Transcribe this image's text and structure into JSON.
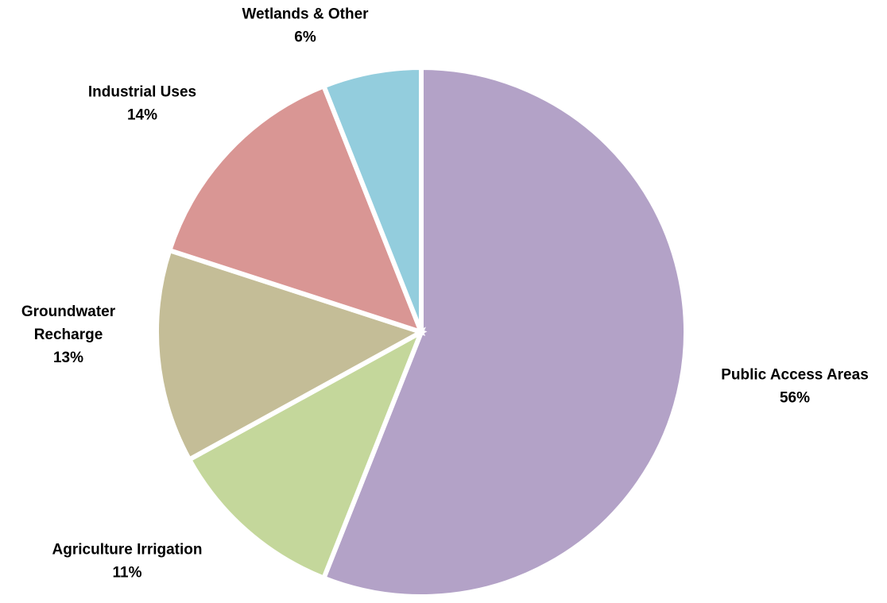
{
  "chart_data": {
    "type": "pie",
    "title": "",
    "legend": "none",
    "slices": [
      {
        "label_lines": [
          "Public Access Areas"
        ],
        "value": 56,
        "percent_label": "56%",
        "color": "#b3a2c7"
      },
      {
        "label_lines": [
          "Agriculture Irrigation"
        ],
        "value": 11,
        "percent_label": "11%",
        "color": "#c4d79b"
      },
      {
        "label_lines": [
          "Groundwater",
          "Recharge"
        ],
        "value": 13,
        "percent_label": "13%",
        "color": "#c4bd97"
      },
      {
        "label_lines": [
          "Industrial Uses"
        ],
        "value": 14,
        "percent_label": "14%",
        "color": "#d99694"
      },
      {
        "label_lines": [
          "Wetlands & Other"
        ],
        "value": 6,
        "percent_label": "6%",
        "color": "#93cddd"
      }
    ]
  }
}
